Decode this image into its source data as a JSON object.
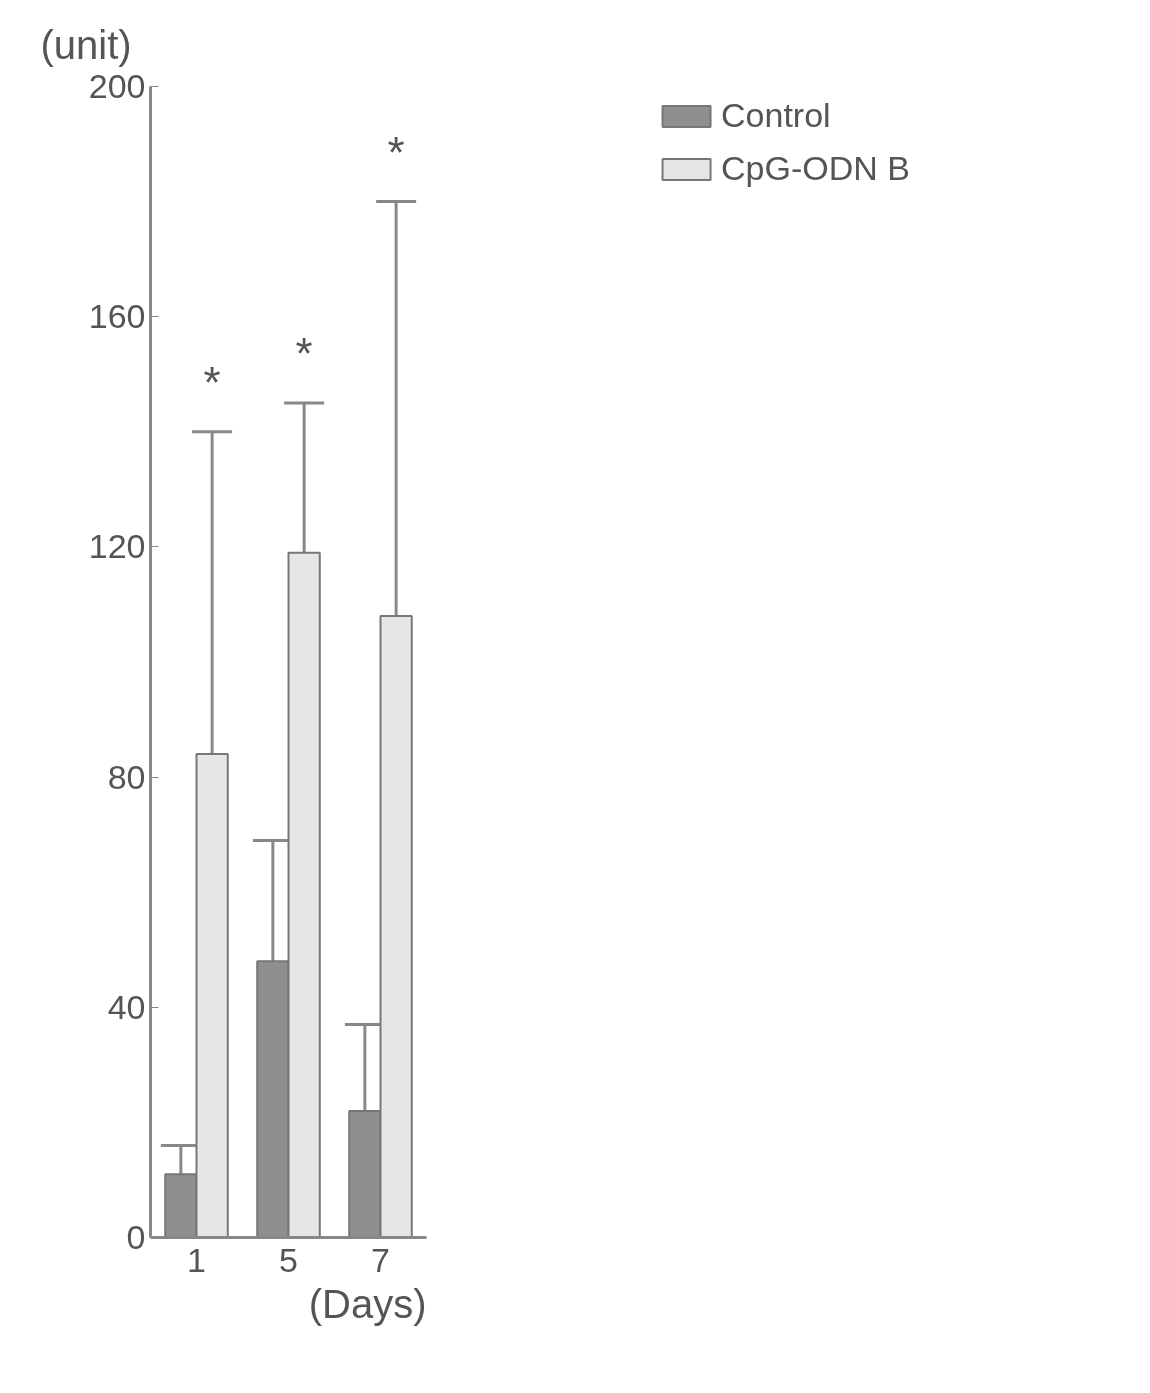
{
  "chart_data": {
    "type": "bar",
    "xlabel": "(Days)",
    "ylabel": "(unit)",
    "categories": [
      "1",
      "5",
      "7"
    ],
    "series": [
      {
        "name": "Control",
        "color": "#8f8f8f",
        "values": [
          11,
          48,
          22
        ],
        "errors": [
          [
            11,
            16
          ],
          [
            48,
            69
          ],
          [
            22,
            37
          ]
        ]
      },
      {
        "name": "CpG-ODN B",
        "color": "#e6e6e6",
        "values": [
          84,
          119,
          108
        ],
        "errors": [
          [
            84,
            140
          ],
          [
            119,
            145
          ],
          [
            108,
            180
          ]
        ]
      }
    ],
    "ylim": [
      0,
      200
    ],
    "yticks": [
      0,
      40,
      80,
      120,
      160,
      200
    ],
    "grid": false,
    "legend": "top right",
    "annotations": [
      "*",
      "*",
      "*"
    ]
  }
}
